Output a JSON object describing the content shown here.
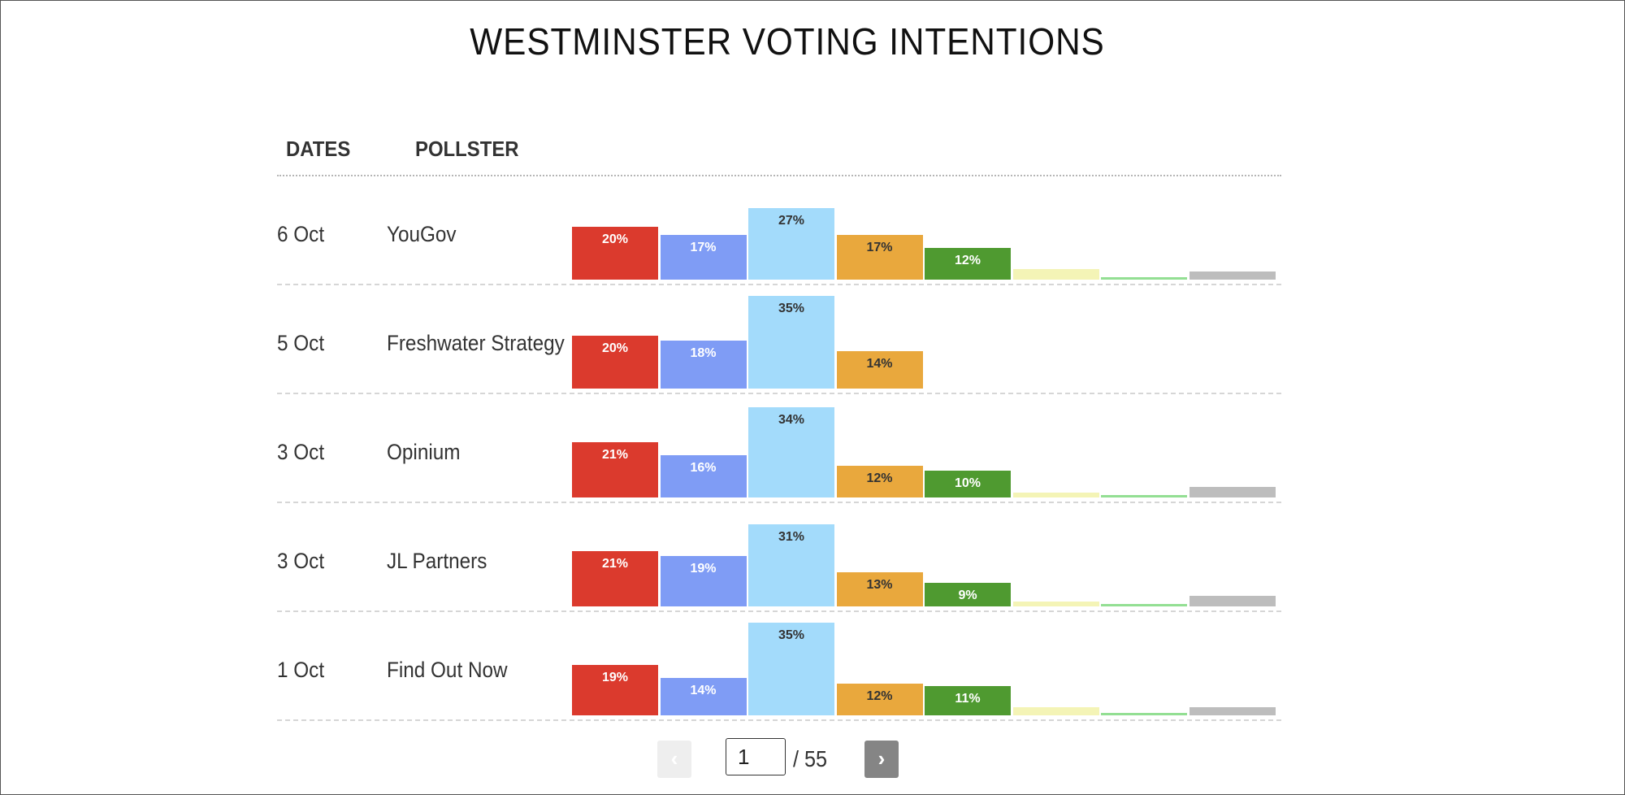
{
  "title": "WESTMINSTER VOTING INTENTIONS",
  "columns": {
    "dates": "DATES",
    "pollster": "POLLSTER"
  },
  "party_colors": [
    "#db3a2d",
    "#7f9cf5",
    "#a3dbfb",
    "#e9a83d",
    "#4f9a30",
    "#f4f4b6",
    "#93df93",
    "#bdbdbd"
  ],
  "label_colors": [
    "#ffffff",
    "#ffffff",
    "#333333",
    "#333333",
    "#ffffff",
    "#333333",
    "#333333",
    "#333333"
  ],
  "chart_data": {
    "type": "bar",
    "rows": [
      {
        "date": "6 Oct",
        "pollster": "YouGov",
        "values": [
          20,
          17,
          27,
          17,
          12,
          4,
          1,
          3
        ],
        "labels": [
          "20%",
          "17%",
          "27%",
          "17%",
          "12%",
          "",
          "",
          ""
        ]
      },
      {
        "date": "5 Oct",
        "pollster": "Freshwater Strategy",
        "values": [
          20,
          18,
          35,
          14,
          null,
          null,
          null,
          null
        ],
        "labels": [
          "20%",
          "18%",
          "35%",
          "14%",
          "",
          "",
          "",
          ""
        ]
      },
      {
        "date": "3 Oct",
        "pollster": "Opinium",
        "values": [
          21,
          16,
          34,
          12,
          10,
          2,
          0.5,
          4
        ],
        "labels": [
          "21%",
          "16%",
          "34%",
          "12%",
          "10%",
          "",
          "",
          ""
        ]
      },
      {
        "date": "3 Oct",
        "pollster": "JL Partners",
        "values": [
          21,
          19,
          31,
          13,
          9,
          2,
          1,
          4
        ],
        "labels": [
          "21%",
          "19%",
          "31%",
          "13%",
          "9%",
          "",
          "",
          ""
        ]
      },
      {
        "date": "1 Oct",
        "pollster": "Find Out Now",
        "values": [
          19,
          14,
          35,
          12,
          11,
          3,
          1,
          3
        ],
        "labels": [
          "19%",
          "14%",
          "35%",
          "12%",
          "11%",
          "",
          "",
          ""
        ]
      }
    ]
  },
  "pagination": {
    "prev_icon": "‹",
    "next_icon": "›",
    "current_page": "1",
    "total_text": "/ 55"
  }
}
